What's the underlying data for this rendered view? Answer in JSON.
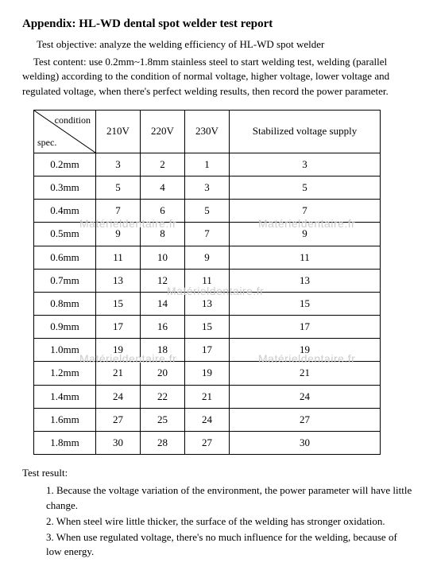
{
  "title": "Appendix: HL-WD dental spot welder test report",
  "objective": "Test objective: analyze the welding efficiency of HL-WD spot welder",
  "content": "Test content: use 0.2mm~1.8mm stainless steel to start welding test, welding (parallel welding) according to the condition of normal voltage, higher voltage, lower voltage and regulated voltage, when there's perfect welding results, then record the power parameter.",
  "table": {
    "diag_top": "condition",
    "diag_bottom": "spec.",
    "columns": [
      "210V",
      "220V",
      "230V",
      "Stabilized voltage supply"
    ],
    "rows": [
      {
        "spec": "0.2mm",
        "vals": [
          "3",
          "2",
          "1",
          "3"
        ]
      },
      {
        "spec": "0.3mm",
        "vals": [
          "5",
          "4",
          "3",
          "5"
        ]
      },
      {
        "spec": "0.4mm",
        "vals": [
          "7",
          "6",
          "5",
          "7"
        ]
      },
      {
        "spec": "0.5mm",
        "vals": [
          "9",
          "8",
          "7",
          "9"
        ]
      },
      {
        "spec": "0.6mm",
        "vals": [
          "11",
          "10",
          "9",
          "11"
        ]
      },
      {
        "spec": "0.7mm",
        "vals": [
          "13",
          "12",
          "11",
          "13"
        ]
      },
      {
        "spec": "0.8mm",
        "vals": [
          "15",
          "14",
          "13",
          "15"
        ]
      },
      {
        "spec": "0.9mm",
        "vals": [
          "17",
          "16",
          "15",
          "17"
        ]
      },
      {
        "spec": "1.0mm",
        "vals": [
          "19",
          "18",
          "17",
          "19"
        ]
      },
      {
        "spec": "1.2mm",
        "vals": [
          "21",
          "20",
          "19",
          "21"
        ]
      },
      {
        "spec": "1.4mm",
        "vals": [
          "24",
          "22",
          "21",
          "24"
        ]
      },
      {
        "spec": "1.6mm",
        "vals": [
          "27",
          "25",
          "24",
          "27"
        ]
      },
      {
        "spec": "1.8mm",
        "vals": [
          "30",
          "28",
          "27",
          "30"
        ]
      }
    ]
  },
  "result_title": "Test result:",
  "results": [
    "1. Because the voltage variation of the environment, the power parameter will have little change.",
    "2. When steel wire little thicker, the surface of the welding has stronger oxidation.",
    "3. When use regulated voltage, there's no much influence for the welding, because of low energy."
  ],
  "watermark": "Matérieldentaire.fr"
}
